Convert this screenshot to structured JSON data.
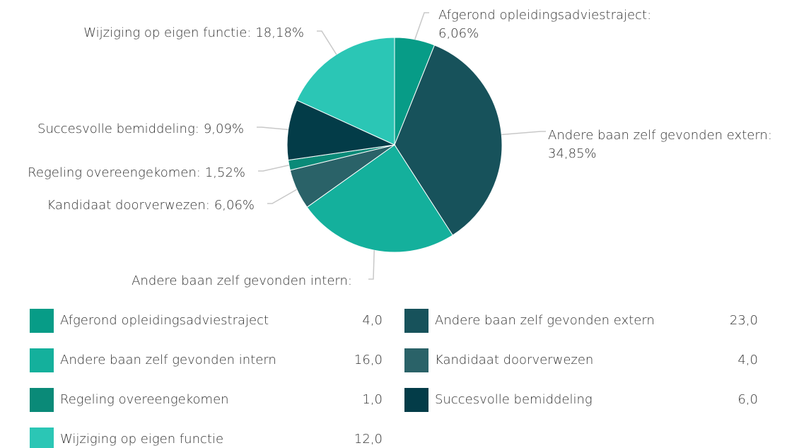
{
  "chart_data": {
    "type": "pie",
    "categories": [
      "Afgerond opleidingsadviestraject",
      "Andere baan zelf gevonden extern",
      "Andere baan zelf gevonden intern",
      "Kandidaat doorverwezen",
      "Regeling overeengekomen",
      "Succesvolle bemiddeling",
      "Wijziging op eigen functie"
    ],
    "callouts": [
      "Afgerond opleidingsadviestraject:",
      "Andere baan zelf gevonden extern:",
      "Andere baan zelf gevonden intern:",
      "Kandidaat doorverwezen:",
      "Regeling overeengekomen:",
      "Succesvolle bemiddeling:",
      "Wijziging op eigen functie:"
    ],
    "values": [
      4,
      23,
      16,
      4,
      1,
      6,
      12
    ],
    "value_labels": [
      "4,0",
      "23,0",
      "16,0",
      "4,0",
      "1,0",
      "6,0",
      "12,0"
    ],
    "percents": [
      6.06,
      34.85,
      null,
      6.06,
      1.52,
      9.09,
      18.18
    ],
    "percent_labels": [
      "6,06%",
      "34,85%",
      null,
      "6,06%",
      "1,52%",
      "9,09%",
      "18,18%"
    ],
    "colors": [
      "#079c87",
      "#17525b",
      "#14b09c",
      "#2a6268",
      "#0a8a78",
      "#033c48",
      "#2bc6b5"
    ]
  }
}
